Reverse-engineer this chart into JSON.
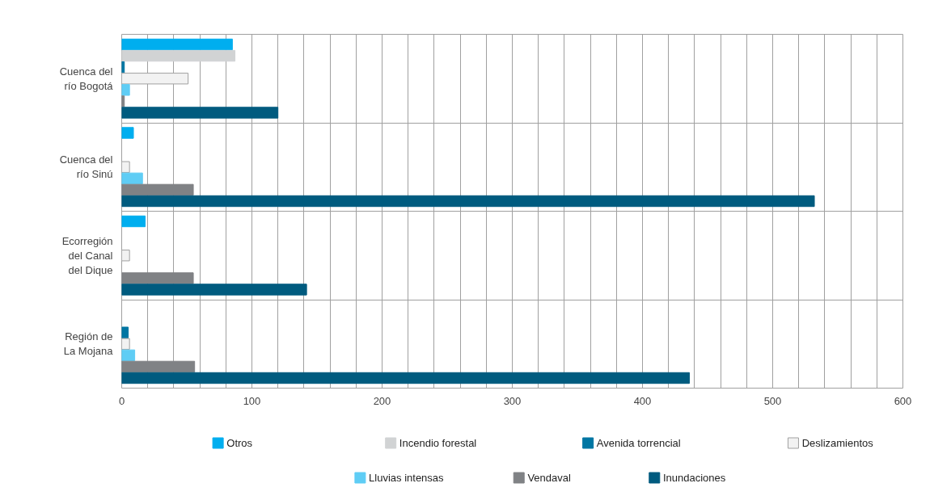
{
  "chart_data": {
    "type": "bar",
    "orientation": "horizontal",
    "categories": [
      "Cuenca del río Bogotá",
      "Cuenca del río Sinú",
      "Ecorregión del Canal del Dique",
      "Región de La Mojana"
    ],
    "series": [
      {
        "name": "Otros",
        "color": "#00aeef",
        "values": [
          85,
          9,
          18,
          null
        ]
      },
      {
        "name": "Incendio forestal",
        "color": "#d1d3d4",
        "values": [
          87,
          null,
          null,
          null
        ]
      },
      {
        "name": "Avenida torrencial",
        "color": "#0076a3",
        "values": [
          2,
          null,
          null,
          5
        ]
      },
      {
        "name": "Deslizamientos",
        "color": "#f2f2f2",
        "values": [
          51,
          6,
          6,
          6
        ]
      },
      {
        "name": "Lluvias intensas",
        "color": "#5fcdf5",
        "values": [
          6,
          16,
          null,
          10
        ]
      },
      {
        "name": "Vendaval",
        "color": "#808285",
        "values": [
          2,
          55,
          55,
          56
        ]
      },
      {
        "name": "Inundaciones",
        "color": "#005b7f",
        "values": [
          120,
          532,
          142,
          436
        ]
      }
    ],
    "xlim": [
      0,
      600
    ],
    "xticks": [
      0,
      {
        "value": 20,
        "label": null
      },
      {
        "value": 40,
        "label": null
      },
      {
        "value": 60,
        "label": null
      },
      {
        "value": 80,
        "label": null
      },
      100,
      {
        "value": 120,
        "label": null
      },
      {
        "value": 140,
        "label": null
      },
      {
        "value": 160,
        "label": null
      },
      {
        "value": 180,
        "label": null
      },
      200,
      {
        "value": 220,
        "label": null
      },
      {
        "value": 240,
        "label": null
      },
      {
        "value": 260,
        "label": null
      },
      {
        "value": 280,
        "label": null
      },
      300,
      {
        "value": 320,
        "label": null
      },
      {
        "value": 340,
        "label": null
      },
      {
        "value": 360,
        "label": null
      },
      {
        "value": 380,
        "label": null
      },
      400,
      {
        "value": 420,
        "label": null
      },
      {
        "value": 440,
        "label": null
      },
      {
        "value": 460,
        "label": null
      },
      {
        "value": 480,
        "label": null
      },
      500,
      {
        "value": 520,
        "label": null
      },
      {
        "value": 540,
        "label": null
      },
      {
        "value": 560,
        "label": null
      },
      {
        "value": 580,
        "label": null
      },
      600
    ],
    "grid": true,
    "legend": "bottom"
  }
}
